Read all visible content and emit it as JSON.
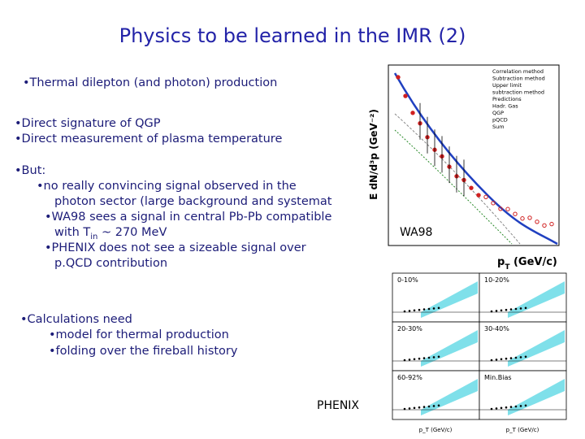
{
  "title": "Physics to be learned in the IMR (2)",
  "bullets": {
    "thermal": "•Thermal dilepton (and photon) production",
    "direct_1": "•Direct signature of QGP",
    "direct_2": "•Direct measurement of plasma temperature",
    "but": "•But:",
    "but_1a": "•no really convincing signal observed in the",
    "but_1b": "photon sector (large background and systemat",
    "but_2a": "•WA98 sees a signal in central Pb-Pb compatible",
    "but_2b": {
      "pre": "with T",
      "sub": "in",
      "post": " ~ 270 MeV"
    },
    "but_3a": "•PHENIX does not see a sizeable signal over",
    "but_3b": "p.QCD contribution",
    "calc": "•Calculations need",
    "calc_1": "•model for thermal production",
    "calc_2": "•folding over the fireball history"
  },
  "wa98_plot": {
    "label": "WA98",
    "y_label": "E dN/d³p (GeV⁻²)",
    "x_label": {
      "main": "p",
      "sub": "T",
      "unit": " (GeV/c)"
    },
    "legend": [
      "Correlation method",
      "Subtraction method",
      "Upper limit",
      "subtraction method",
      "Predictions",
      "Hadr. Gas",
      "QGP",
      "pQCD",
      "Sum"
    ]
  },
  "phenix_plot": {
    "label": "PHENIX",
    "panels": [
      "0-10%",
      "10-20%",
      "20-30%",
      "30-40%",
      "60-92%",
      "Min.Bias"
    ],
    "x_label": "p_T (GeV/c)"
  }
}
